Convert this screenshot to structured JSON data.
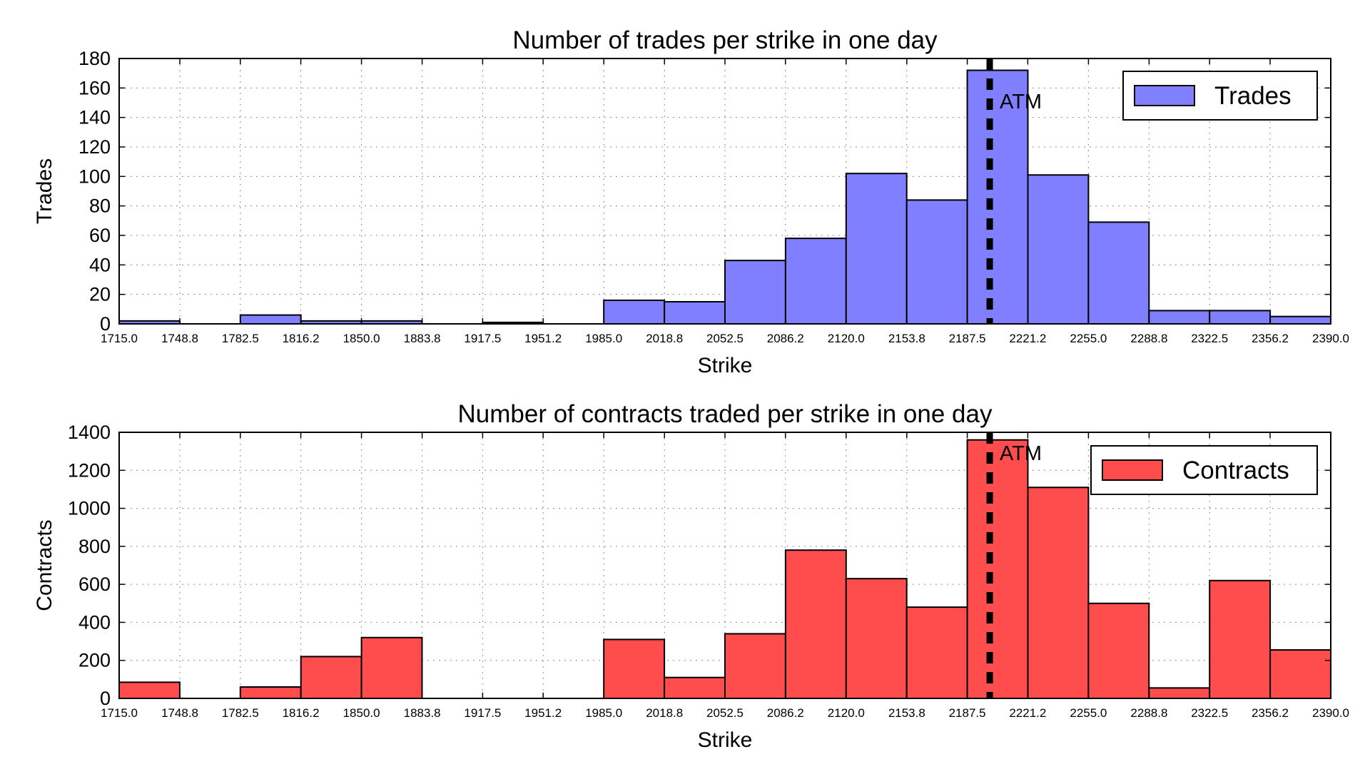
{
  "chart_data": [
    {
      "type": "bar",
      "title": "Number of trades per strike in one day",
      "xlabel": "Strike",
      "ylabel": "Trades",
      "xlim": [
        1715.0,
        2390.0
      ],
      "ylim": [
        0,
        180
      ],
      "yticks": [
        "0",
        "20",
        "40",
        "60",
        "80",
        "100",
        "120",
        "140",
        "160",
        "180"
      ],
      "xticks": [
        "1715.0",
        "1748.8",
        "1782.5",
        "1816.2",
        "1850.0",
        "1883.8",
        "1917.5",
        "1951.2",
        "1985.0",
        "2018.8",
        "2052.5",
        "2086.2",
        "2120.0",
        "2153.8",
        "2187.5",
        "2221.2",
        "2255.0",
        "2288.8",
        "2322.5",
        "2356.2",
        "2390.0"
      ],
      "bin_edges": [
        1715.0,
        1748.75,
        1782.5,
        1816.25,
        1850.0,
        1883.75,
        1917.5,
        1951.25,
        1985.0,
        2018.75,
        2052.5,
        2086.25,
        2120.0,
        2153.75,
        2187.5,
        2221.25,
        2255.0,
        2288.75,
        2322.5,
        2356.25,
        2390.0
      ],
      "values": [
        2,
        0,
        6,
        2,
        2,
        0,
        1,
        0,
        16,
        15,
        43,
        58,
        102,
        84,
        172,
        101,
        69,
        9,
        9,
        5
      ],
      "series": [
        {
          "name": "Trades",
          "color": "#7f7fff"
        }
      ],
      "atm_strike": 2200,
      "atm_label": "ATM",
      "legend_position": "upper right",
      "grid": true
    },
    {
      "type": "bar",
      "title": "Number of contracts traded per strike in one day",
      "xlabel": "Strike",
      "ylabel": "Contracts",
      "xlim": [
        1715.0,
        2390.0
      ],
      "ylim": [
        0,
        1400
      ],
      "yticks": [
        "0",
        "200",
        "400",
        "600",
        "800",
        "1000",
        "1200",
        "1400"
      ],
      "xticks": [
        "1715.0",
        "1748.8",
        "1782.5",
        "1816.2",
        "1850.0",
        "1883.8",
        "1917.5",
        "1951.2",
        "1985.0",
        "2018.8",
        "2052.5",
        "2086.2",
        "2120.0",
        "2153.8",
        "2187.5",
        "2221.2",
        "2255.0",
        "2288.8",
        "2322.5",
        "2356.2",
        "2390.0"
      ],
      "bin_edges": [
        1715.0,
        1748.75,
        1782.5,
        1816.25,
        1850.0,
        1883.75,
        1917.5,
        1951.25,
        1985.0,
        2018.75,
        2052.5,
        2086.25,
        2120.0,
        2153.75,
        2187.5,
        2221.25,
        2255.0,
        2288.75,
        2322.5,
        2356.25,
        2390.0
      ],
      "values": [
        85,
        0,
        60,
        220,
        320,
        0,
        0,
        0,
        310,
        110,
        340,
        780,
        630,
        480,
        1360,
        1110,
        500,
        55,
        620,
        255
      ],
      "series": [
        {
          "name": "Contracts",
          "color": "#ff4c4c"
        }
      ],
      "atm_strike": 2200,
      "atm_label": "ATM",
      "legend_position": "upper right",
      "grid": true
    }
  ]
}
